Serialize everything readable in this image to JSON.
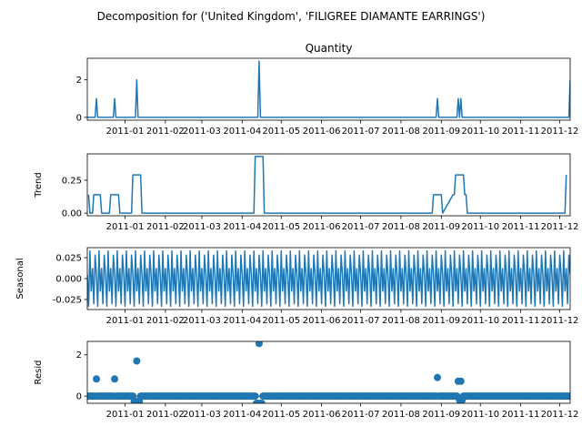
{
  "figure": {
    "suptitle": "Decomposition for ('United Kingdom', 'FILIGREE DIAMANTE EARRINGS')"
  },
  "colors": {
    "series": "#1f77b4",
    "axes": "#000000",
    "background": "#ffffff"
  },
  "chart_data": [
    {
      "type": "line",
      "title": "Quantity",
      "ylabel": "",
      "ylim": [
        -0.15,
        3.15
      ],
      "yticks": [
        0,
        2
      ],
      "xlim": [
        "2010-12-02",
        "2011-12-08"
      ],
      "xtick_dates": [
        "2010-12-31",
        "2011-01-31",
        "2011-02-28",
        "2011-03-31",
        "2011-04-30",
        "2011-05-31",
        "2011-06-30",
        "2011-07-31",
        "2011-08-31",
        "2011-09-30",
        "2011-10-31",
        "2011-11-30"
      ],
      "xtick_labels": [
        "2011-01",
        "2011-02",
        "2011-03",
        "2011-04",
        "2011-05",
        "2011-06",
        "2011-07",
        "2011-08",
        "2011-09",
        "2011-10",
        "2011-11",
        "2011-12"
      ],
      "x": [
        "2010-12-02",
        "2010-12-08",
        "2010-12-09",
        "2010-12-10",
        "2010-12-22",
        "2010-12-23",
        "2010-12-24",
        "2011-01-08",
        "2011-01-09",
        "2011-01-10",
        "2011-04-12",
        "2011-04-13",
        "2011-04-14",
        "2011-08-27",
        "2011-08-28",
        "2011-08-29",
        "2011-09-12",
        "2011-09-13",
        "2011-09-14",
        "2011-09-15",
        "2011-09-16",
        "2011-12-07",
        "2011-12-08"
      ],
      "series": [
        {
          "values": [
            0,
            0,
            1,
            0,
            0,
            1,
            0,
            0,
            2,
            0,
            0,
            3,
            0,
            0,
            1,
            0,
            0,
            1,
            0,
            1,
            0,
            0,
            2
          ]
        }
      ]
    },
    {
      "type": "line",
      "title": "",
      "ylabel": "Trend",
      "ylim": [
        -0.02,
        0.45
      ],
      "yticks": [
        0.0,
        0.25
      ],
      "xlim": [
        "2010-12-02",
        "2011-12-08"
      ],
      "xtick_dates": [
        "2010-12-31",
        "2011-01-31",
        "2011-02-28",
        "2011-03-31",
        "2011-04-30",
        "2011-05-31",
        "2011-06-30",
        "2011-07-31",
        "2011-08-31",
        "2011-09-30",
        "2011-10-31",
        "2011-11-30"
      ],
      "xtick_labels": [
        "2011-01",
        "2011-02",
        "2011-03",
        "2011-04",
        "2011-05",
        "2011-06",
        "2011-07",
        "2011-08",
        "2011-09",
        "2011-10",
        "2011-11",
        "2011-12"
      ],
      "x": [
        "2010-12-03",
        "2010-12-04",
        "2010-12-06",
        "2010-12-07",
        "2010-12-12",
        "2010-12-13",
        "2010-12-19",
        "2010-12-20",
        "2010-12-26",
        "2010-12-27",
        "2011-01-05",
        "2011-01-06",
        "2011-01-12",
        "2011-01-13",
        "2011-04-09",
        "2011-04-10",
        "2011-04-16",
        "2011-04-17",
        "2011-08-24",
        "2011-08-25",
        "2011-08-31",
        "2011-09-01",
        "2011-09-09",
        "2011-09-10",
        "2011-09-11",
        "2011-09-17",
        "2011-09-18",
        "2011-09-19",
        "2011-09-20",
        "2011-12-04",
        "2011-12-05"
      ],
      "series": [
        {
          "values": [
            0.14,
            0,
            0,
            0.14,
            0.14,
            0,
            0,
            0.14,
            0.14,
            0,
            0,
            0.29,
            0.29,
            0,
            0,
            0.43,
            0.43,
            0,
            0,
            0.14,
            0.14,
            0,
            0.14,
            0.14,
            0.29,
            0.29,
            0.14,
            0.14,
            0,
            0,
            0.29
          ]
        }
      ]
    },
    {
      "type": "line",
      "title": "",
      "ylabel": "Seasonal",
      "ylim": [
        -0.037,
        0.037
      ],
      "yticks": [
        -0.025,
        0.0,
        0.025
      ],
      "xlim": [
        "2010-12-02",
        "2011-12-08"
      ],
      "xtick_dates": [
        "2010-12-31",
        "2011-01-31",
        "2011-02-28",
        "2011-03-31",
        "2011-04-30",
        "2011-05-31",
        "2011-06-30",
        "2011-07-31",
        "2011-08-31",
        "2011-09-30",
        "2011-10-31",
        "2011-11-30"
      ],
      "xtick_labels": [
        "2011-01",
        "2011-02",
        "2011-03",
        "2011-04",
        "2011-05",
        "2011-06",
        "2011-07",
        "2011-08",
        "2011-09",
        "2011-10",
        "2011-11",
        "2011-12"
      ],
      "x_start": "2010-12-02",
      "period_days": 7,
      "days": 372,
      "series": [
        {
          "pattern": [
            0.005,
            -0.033,
            0.033,
            -0.015,
            0.012,
            -0.03,
            0.028
          ]
        }
      ]
    },
    {
      "type": "scatter",
      "title": "",
      "ylabel": "Resid",
      "ylim": [
        -0.35,
        2.65
      ],
      "yticks": [
        0,
        2
      ],
      "xlim": [
        "2010-12-02",
        "2011-12-08"
      ],
      "xtick_dates": [
        "2010-12-31",
        "2011-01-31",
        "2011-02-28",
        "2011-03-31",
        "2011-04-30",
        "2011-05-31",
        "2011-06-30",
        "2011-07-31",
        "2011-08-31",
        "2011-09-30",
        "2011-10-31",
        "2011-11-30"
      ],
      "xtick_labels": [
        "2011-01",
        "2011-02",
        "2011-03",
        "2011-04",
        "2011-05",
        "2011-06",
        "2011-07",
        "2011-08",
        "2011-09",
        "2011-10",
        "2011-11",
        "2011-12"
      ],
      "x_start": "2010-12-02",
      "days": 372,
      "baseline": 0,
      "dip_days": [
        {
          "from": "2011-01-07",
          "to": "2011-01-11",
          "value": -0.25
        },
        {
          "from": "2011-04-11",
          "to": "2011-04-15",
          "value": -0.35
        },
        {
          "from": "2011-09-13",
          "to": "2011-09-16",
          "value": -0.2
        }
      ],
      "outliers": [
        {
          "x": "2010-12-09",
          "y": 0.83
        },
        {
          "x": "2010-12-23",
          "y": 0.83
        },
        {
          "x": "2011-01-09",
          "y": 1.7
        },
        {
          "x": "2011-04-13",
          "y": 2.55
        },
        {
          "x": "2011-08-28",
          "y": 0.9
        },
        {
          "x": "2011-09-13",
          "y": 0.72
        },
        {
          "x": "2011-09-15",
          "y": 0.72
        }
      ]
    }
  ]
}
